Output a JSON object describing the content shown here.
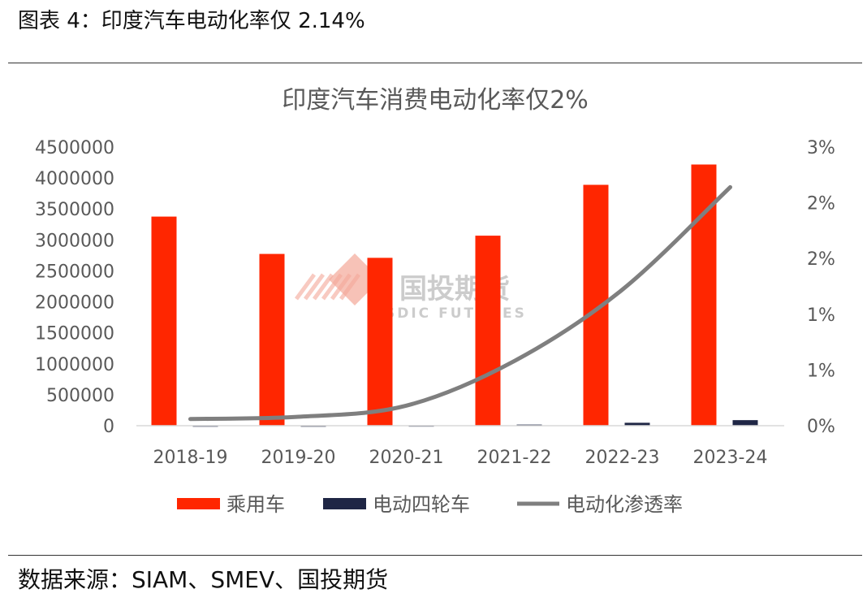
{
  "figure": {
    "title": "图表 4：印度汽车电动化率仅 2.14%",
    "source": "数据来源：SIAM、SMEV、国投期货"
  },
  "watermark": {
    "name": "国投期货",
    "sub": "SDIC FUTURES"
  },
  "colors": {
    "passenger": "#ff2600",
    "ev4w": "#1f2645",
    "penetration": "#7f7f7f",
    "text": "#595959",
    "watermark": "#f4a898"
  },
  "chart_data": {
    "type": "bar+line",
    "title": "印度汽车消费电动化率仅2%",
    "categories": [
      "2018-19",
      "2019-20",
      "2020-21",
      "2021-22",
      "2022-23",
      "2023-24"
    ],
    "series": [
      {
        "name": "乘用车",
        "type": "bar",
        "axis": "left",
        "values": [
          3377000,
          2774000,
          2711000,
          3069000,
          3890000,
          4218000
        ]
      },
      {
        "name": "电动四轮车",
        "type": "bar",
        "axis": "left",
        "values": [
          3400,
          3300,
          5000,
          17800,
          47500,
          90000
        ]
      },
      {
        "name": "电动化渗透率",
        "type": "line",
        "axis": "right",
        "values": [
          0.0006,
          0.0008,
          0.0018,
          0.0058,
          0.0122,
          0.0214
        ]
      }
    ],
    "y_left": {
      "min": 0,
      "max": 4500000,
      "step": 500000,
      "tick_labels": [
        "0",
        "500000",
        "1000000",
        "1500000",
        "2000000",
        "2500000",
        "3000000",
        "3500000",
        "4000000",
        "4500000"
      ]
    },
    "y_right": {
      "min": 0,
      "max": 0.025,
      "step": 0.005,
      "tick_labels": [
        "0%",
        "1%",
        "1%",
        "2%",
        "2%",
        "3%"
      ]
    },
    "legend": {
      "position": "bottom"
    },
    "grid": false
  }
}
